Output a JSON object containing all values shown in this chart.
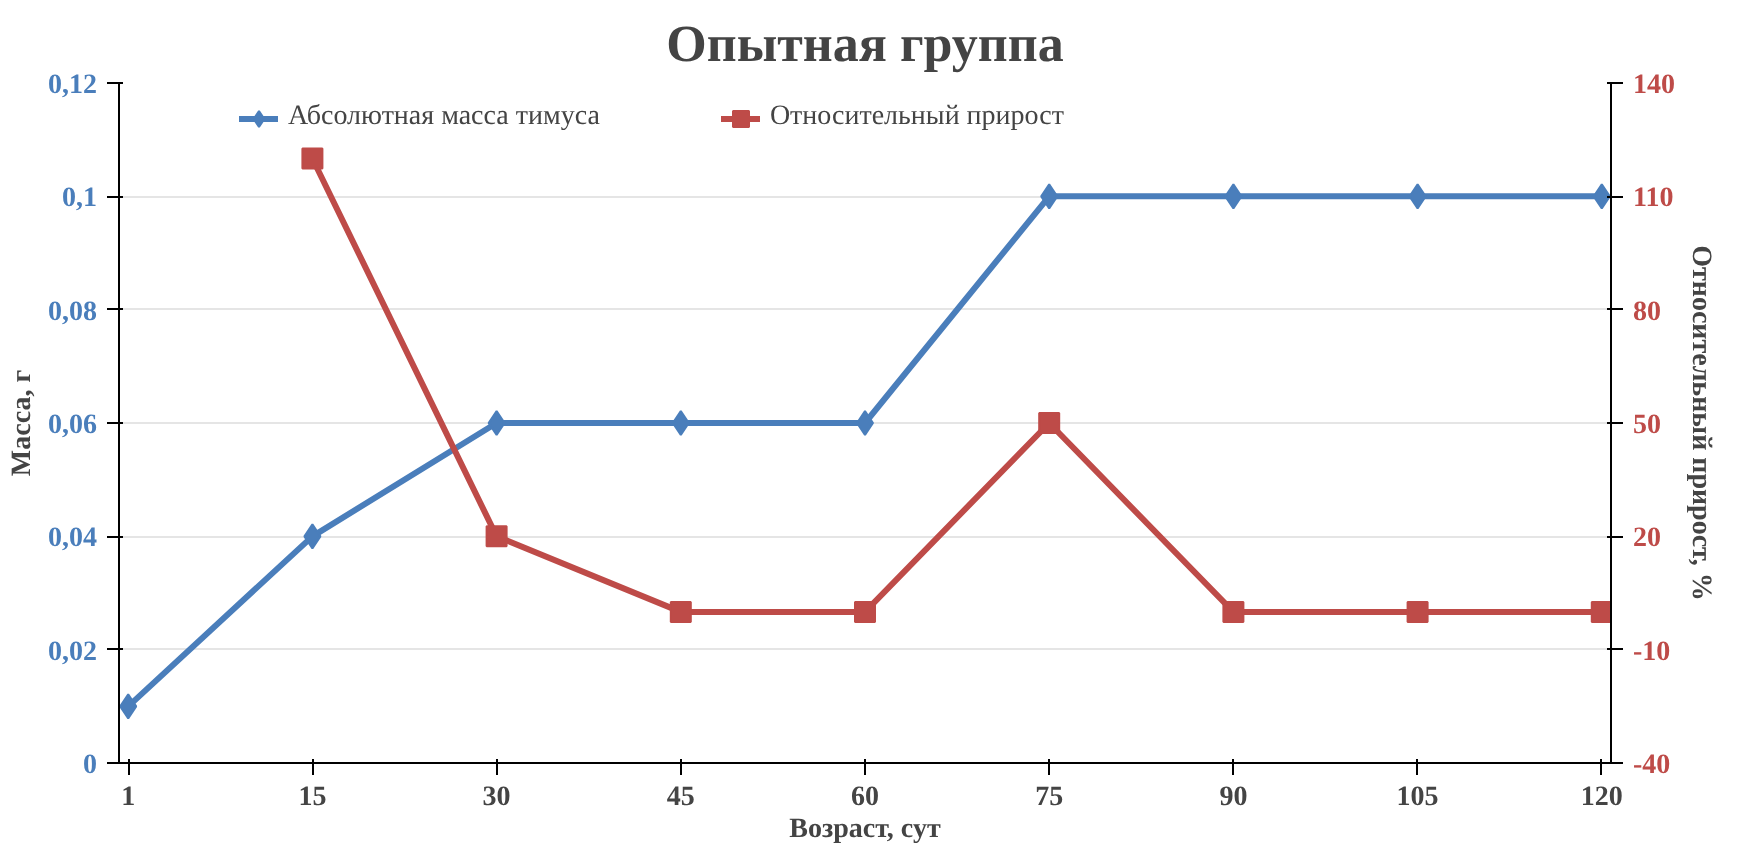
{
  "chart_data": {
    "type": "line",
    "title": "Опытная группа",
    "xlabel": "Возраст, сут",
    "ylabel": "Масса, г",
    "y2label": "Относительный прирост, %",
    "categories": [
      "1",
      "15",
      "30",
      "45",
      "60",
      "75",
      "90",
      "105",
      "120"
    ],
    "series": [
      {
        "name": "Абсолютная масса тимуса",
        "color": "#4a7ebb",
        "marker": "diamond",
        "values": [
          0.01,
          0.04,
          0.06,
          0.06,
          0.06,
          0.1,
          0.1,
          0.1,
          0.1
        ]
      },
      {
        "name": "Относительный прирост",
        "color": "#be4b48",
        "marker": "square",
        "axis": "y2",
        "values": [
          null,
          120,
          20,
          0,
          0,
          50,
          0,
          0,
          0
        ]
      }
    ],
    "ylim": [
      0,
      0.12
    ],
    "yticks": [
      {
        "value": 0,
        "label": "0"
      },
      {
        "value": 0.02,
        "label": "0,02"
      },
      {
        "value": 0.04,
        "label": "0,04"
      },
      {
        "value": 0.06,
        "label": "0,06"
      },
      {
        "value": 0.08,
        "label": "0,08"
      },
      {
        "value": 0.1,
        "label": "0,1"
      },
      {
        "value": 0.12,
        "label": "0,12"
      }
    ],
    "y2lim": [
      -40,
      140
    ],
    "y2ticks": [
      -40,
      -10,
      20,
      50,
      80,
      110,
      140
    ],
    "grid": "y",
    "legend": "top"
  }
}
